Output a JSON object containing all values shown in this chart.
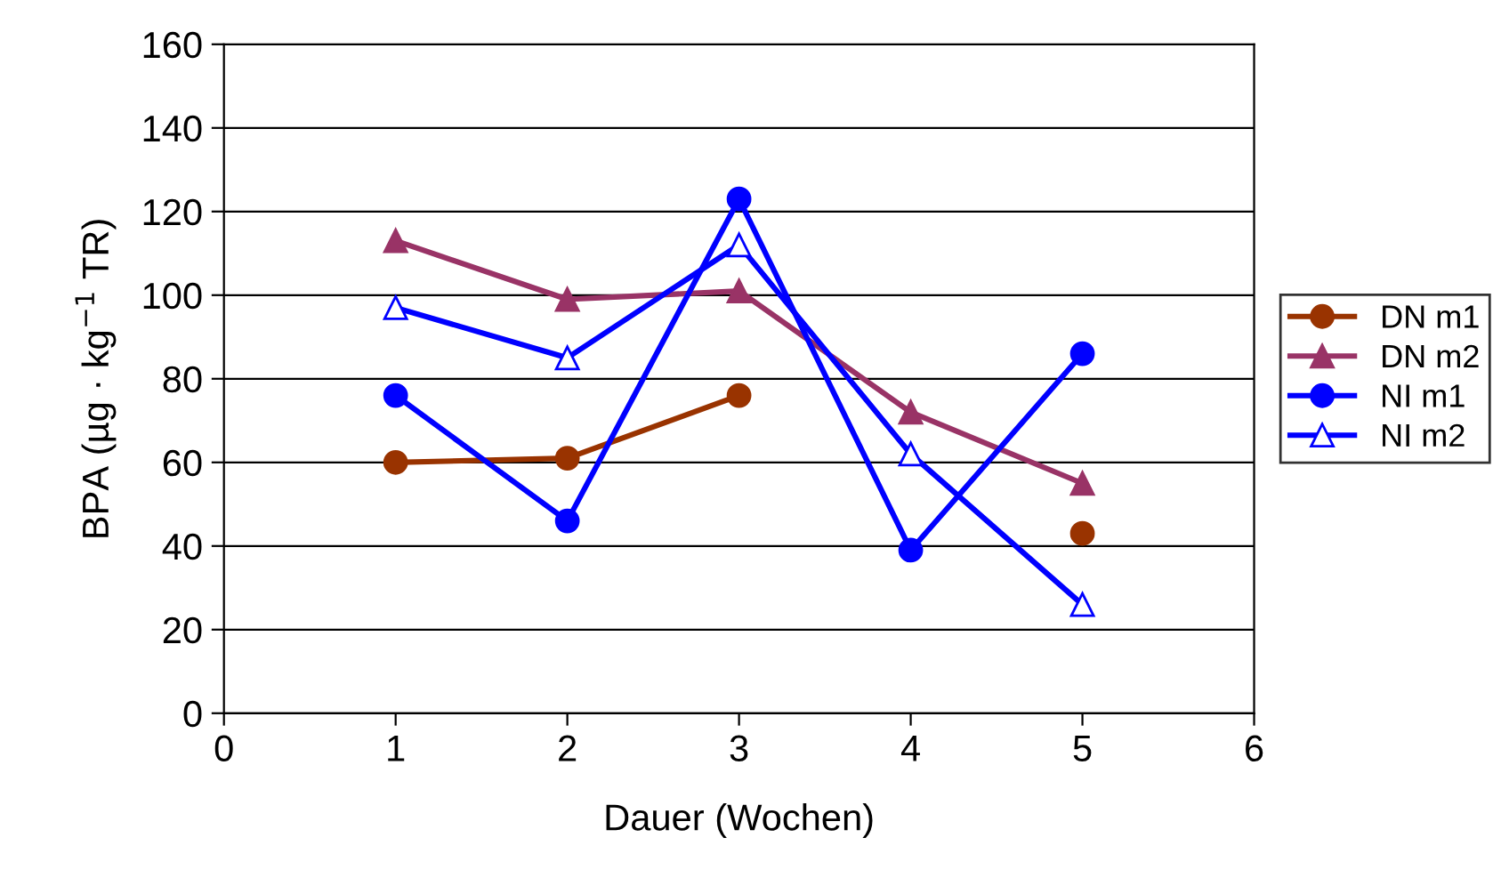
{
  "chart_data": {
    "type": "line",
    "xlabel": "Dauer (Wochen)",
    "ylabel": "BPA (µg · kg$^{−1}$ TR)",
    "x": [
      1,
      2,
      3,
      4,
      5
    ],
    "xlim": [
      0,
      6
    ],
    "xticks": [
      0,
      1,
      2,
      3,
      4,
      5,
      6
    ],
    "ylim": [
      0,
      160
    ],
    "yticks": [
      0,
      20,
      40,
      60,
      80,
      100,
      120,
      140,
      160
    ],
    "grid": "y",
    "legend": "right",
    "series": [
      {
        "name": "DN m1",
        "color": "#993300",
        "marker": "circle",
        "values": [
          60,
          61,
          76,
          null,
          43
        ]
      },
      {
        "name": "DN m2",
        "color": "#993366",
        "marker": "triangle",
        "values": [
          113,
          99,
          101,
          72,
          55
        ]
      },
      {
        "name": "NI m1",
        "color": "#0000ff",
        "marker": "circle",
        "values": [
          76,
          46,
          123,
          39,
          86
        ]
      },
      {
        "name": "NI m2",
        "color": "#0000ff",
        "marker": "triangle",
        "values": [
          97,
          85,
          112,
          62,
          26
        ]
      }
    ]
  }
}
